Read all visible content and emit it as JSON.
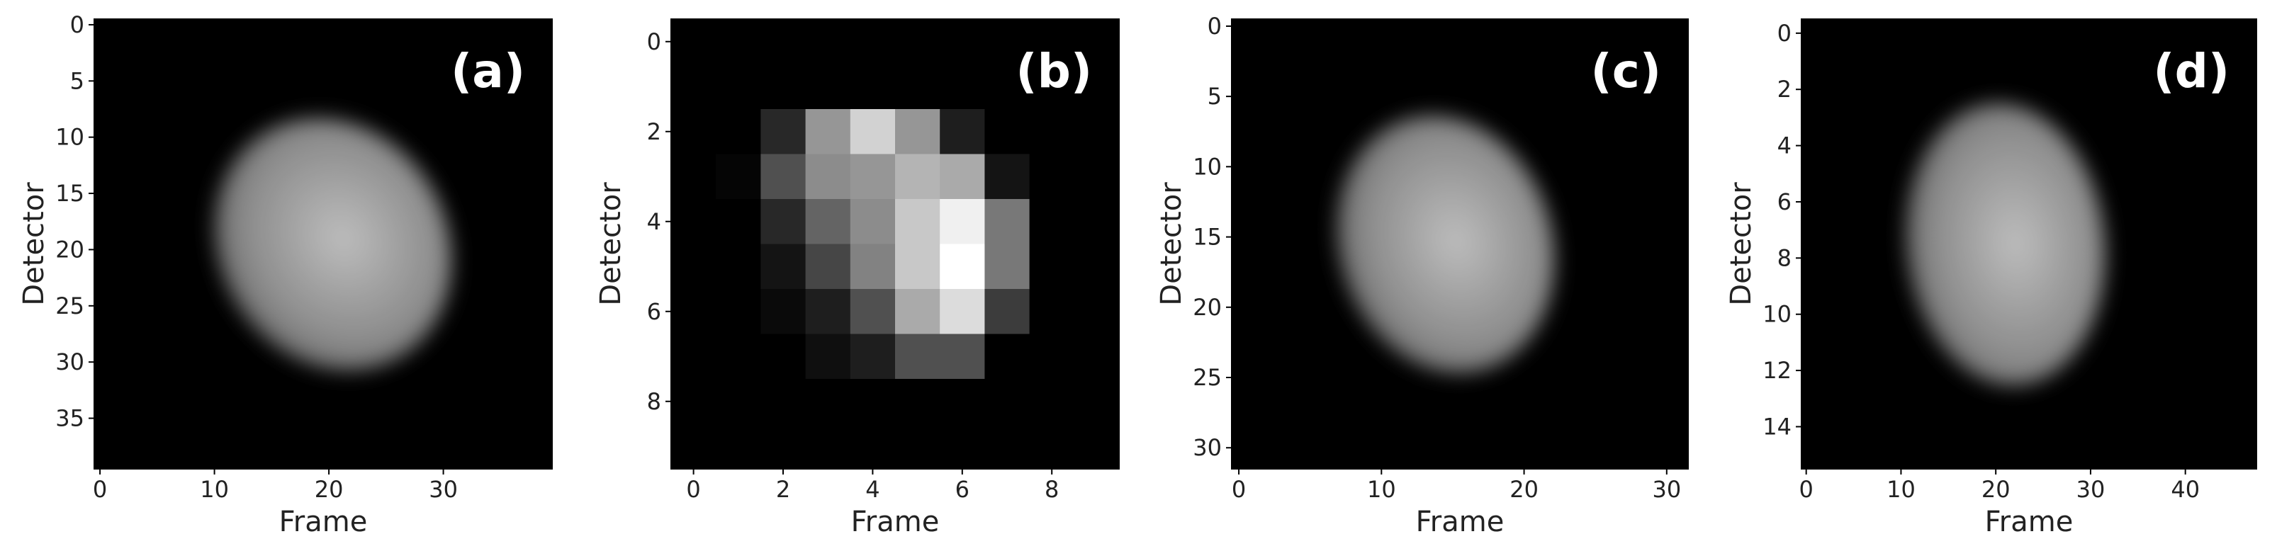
{
  "chart_data": [
    {
      "type": "image",
      "title": "(a)",
      "xlabel": "Frame",
      "ylabel": "Detector",
      "xlim": [
        -0.5,
        39.5
      ],
      "ylim": [
        39.5,
        -0.5
      ],
      "xticks": [
        0,
        10,
        20,
        30
      ],
      "yticks": [
        0,
        5,
        10,
        15,
        20,
        25,
        30,
        35
      ]
    },
    {
      "type": "heatmap",
      "title": "(b)",
      "xlabel": "Frame",
      "ylabel": "Detector",
      "xlim": [
        -0.5,
        9.5
      ],
      "ylim": [
        9.5,
        -0.5
      ],
      "xticks": [
        0,
        2,
        4,
        6,
        8
      ],
      "yticks": [
        0,
        2,
        4,
        6,
        8
      ],
      "values": [
        [
          0,
          0,
          0,
          0,
          0,
          0,
          0,
          0,
          0,
          0
        ],
        [
          0,
          0,
          0,
          0,
          0,
          0,
          0,
          0,
          0,
          0
        ],
        [
          0,
          0,
          40,
          150,
          210,
          150,
          30,
          0,
          0,
          0
        ],
        [
          0,
          5,
          80,
          140,
          150,
          180,
          170,
          20,
          0,
          0
        ],
        [
          0,
          0,
          40,
          100,
          140,
          200,
          240,
          120,
          0,
          0
        ],
        [
          0,
          0,
          20,
          70,
          130,
          200,
          255,
          120,
          0,
          0
        ],
        [
          0,
          0,
          10,
          30,
          80,
          170,
          220,
          60,
          0,
          0
        ],
        [
          0,
          0,
          0,
          15,
          30,
          80,
          80,
          0,
          0,
          0
        ],
        [
          0,
          0,
          0,
          0,
          0,
          0,
          0,
          0,
          0,
          0
        ],
        [
          0,
          0,
          0,
          0,
          0,
          0,
          0,
          0,
          0,
          0
        ]
      ]
    },
    {
      "type": "image",
      "title": "(c)",
      "xlabel": "Frame",
      "ylabel": "Detector",
      "xlim": [
        -0.5,
        31.5
      ],
      "ylim": [
        31.5,
        -0.5
      ],
      "xticks": [
        0,
        10,
        20,
        30
      ],
      "yticks": [
        0,
        5,
        10,
        15,
        20,
        25,
        30
      ]
    },
    {
      "type": "image",
      "title": "(d)",
      "xlabel": "Frame",
      "ylabel": "Detector",
      "xlim": [
        -0.5,
        47.5
      ],
      "ylim": [
        15.5,
        -0.5
      ],
      "xticks": [
        0,
        10,
        20,
        30,
        40
      ],
      "yticks": [
        0,
        2,
        4,
        6,
        8,
        10,
        12,
        14
      ]
    }
  ]
}
